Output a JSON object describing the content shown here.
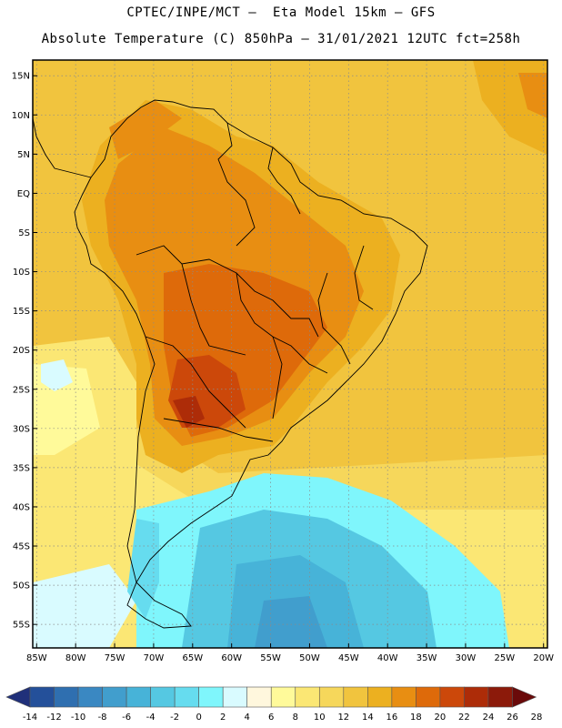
{
  "header": {
    "line1": "CPTEC/INPE/MCT –  Eta Model 15km – GFS",
    "line2": "Absolute Temperature (C) 850hPa – 31/01/2021 12UTC fct=258h"
  },
  "map": {
    "lat_labels": [
      "15N",
      "10N",
      "5N",
      "EQ",
      "5S",
      "10S",
      "15S",
      "20S",
      "25S",
      "30S",
      "35S",
      "40S",
      "45S",
      "50S",
      "55S"
    ],
    "lon_labels": [
      "85W",
      "80W",
      "75W",
      "70W",
      "65W",
      "60W",
      "55W",
      "50W",
      "45W",
      "40W",
      "35W",
      "30W",
      "25W",
      "20W"
    ],
    "lat_range": [
      17,
      -58
    ],
    "lon_range": [
      -85.5,
      -19.5
    ],
    "grid": "dotted"
  },
  "colorbar": {
    "labels": [
      "-14",
      "-12",
      "-10",
      "-8",
      "-6",
      "-4",
      "-2",
      "0",
      "2",
      "4",
      "6",
      "8",
      "10",
      "12",
      "14",
      "16",
      "18",
      "20",
      "22",
      "24",
      "26",
      "28"
    ],
    "colors": [
      "#20307a",
      "#24509a",
      "#2f6fb0",
      "#3a88c2",
      "#419ecd",
      "#47b3d8",
      "#55c8e2",
      "#66dcef",
      "#7ff6fc",
      "#d9fbff",
      "#fff7dd",
      "#fffa9a",
      "#fbe774",
      "#f6d75b",
      "#f1c43e",
      "#ecb020",
      "#e88e12",
      "#de6a0a",
      "#cc480a",
      "#ad2c08",
      "#8c1a0a",
      "#6a0a0a"
    ],
    "colors_note_removed": true
  }
}
